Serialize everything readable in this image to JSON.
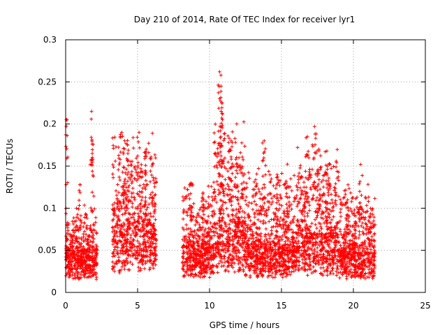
{
  "chart_data": {
    "type": "scatter",
    "title": "Day 210 of 2014, Rate Of TEC Index for receiver lyr1",
    "xlabel": "GPS time / hours",
    "ylabel": "ROTI / TECUs",
    "xlim": [
      0,
      25
    ],
    "ylim": [
      0,
      0.3
    ],
    "grid": true,
    "marker": "+",
    "color": "#ff0000",
    "x_ticks": [
      "0",
      "5",
      "10",
      "15",
      "20",
      "25"
    ],
    "y_ticks": [
      "0",
      "0.05",
      "0.1",
      "0.15",
      "0.2",
      "0.25",
      "0.3"
    ],
    "x_tick_values": [
      0,
      5,
      10,
      15,
      20,
      25
    ],
    "y_tick_values": [
      0,
      0.05,
      0.1,
      0.15,
      0.2,
      0.25,
      0.3
    ],
    "points_per_hour": 220,
    "segments": [
      {
        "start": 0.0,
        "end": 2.2,
        "typical": 0.035,
        "spread": 0.035,
        "peaks": [
          [
            0.05,
            0.205
          ],
          [
            1.8,
            0.215
          ],
          [
            1.85,
            0.165
          ],
          [
            1.0,
            0.128
          ]
        ]
      },
      {
        "start": 3.25,
        "end": 6.3,
        "typical": 0.06,
        "spread": 0.07,
        "peaks": [
          [
            3.9,
            0.19
          ],
          [
            4.1,
            0.18
          ],
          [
            4.3,
            0.175
          ],
          [
            5.1,
            0.19
          ],
          [
            5.6,
            0.17
          ]
        ]
      },
      {
        "start": 8.1,
        "end": 10.3,
        "typical": 0.04,
        "spread": 0.05,
        "peaks": [
          [
            8.7,
            0.13
          ],
          [
            9.6,
            0.11
          ]
        ]
      },
      {
        "start": 10.3,
        "end": 12.5,
        "typical": 0.06,
        "spread": 0.08,
        "peaks": [
          [
            10.7,
            0.262
          ],
          [
            10.8,
            0.245
          ],
          [
            10.85,
            0.225
          ],
          [
            10.9,
            0.205
          ],
          [
            11.5,
            0.18
          ],
          [
            12.0,
            0.15
          ]
        ]
      },
      {
        "start": 12.5,
        "end": 16.0,
        "typical": 0.04,
        "spread": 0.06,
        "peaks": [
          [
            13.8,
            0.18
          ],
          [
            14.7,
            0.14
          ],
          [
            15.3,
            0.13
          ]
        ]
      },
      {
        "start": 16.0,
        "end": 19.0,
        "typical": 0.05,
        "spread": 0.07,
        "peaks": [
          [
            16.8,
            0.185
          ],
          [
            17.3,
            0.197
          ],
          [
            17.6,
            0.17
          ],
          [
            18.2,
            0.15
          ]
        ]
      },
      {
        "start": 19.0,
        "end": 21.5,
        "typical": 0.035,
        "spread": 0.05,
        "peaks": [
          [
            19.6,
            0.11
          ],
          [
            20.5,
            0.152
          ],
          [
            21.2,
            0.1
          ]
        ]
      }
    ]
  }
}
